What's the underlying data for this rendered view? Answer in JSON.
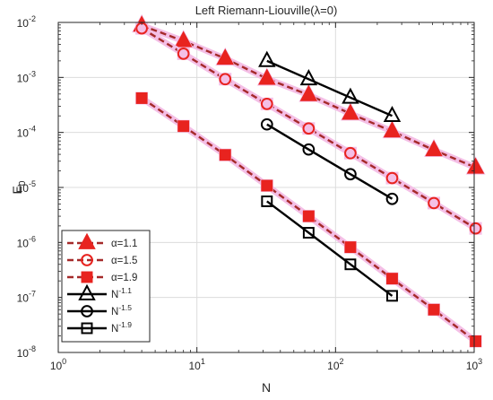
{
  "chart_data": {
    "type": "line",
    "title": "Left Riemann-Liouville(λ=0)",
    "xlabel": "N",
    "ylabel": "E",
    "ylabel_sub": "0",
    "xscale": "log",
    "yscale": "log",
    "xlim": [
      1,
      1000
    ],
    "ylim": [
      1e-08,
      0.01
    ],
    "grid": true,
    "legend_position": "bottom-left",
    "x_ticks": [
      {
        "value": 1,
        "base": "10",
        "exp": "0"
      },
      {
        "value": 10,
        "base": "10",
        "exp": "1"
      },
      {
        "value": 100,
        "base": "10",
        "exp": "2"
      },
      {
        "value": 1000,
        "base": "10",
        "exp": "3"
      }
    ],
    "y_ticks": [
      {
        "value": 1e-08,
        "base": "10",
        "exp": "-8"
      },
      {
        "value": 1e-07,
        "base": "10",
        "exp": "-7"
      },
      {
        "value": 1e-06,
        "base": "10",
        "exp": "-6"
      },
      {
        "value": 1e-05,
        "base": "10",
        "exp": "-5"
      },
      {
        "value": 0.0001,
        "base": "10",
        "exp": "-4"
      },
      {
        "value": 0.001,
        "base": "10",
        "exp": "-3"
      },
      {
        "value": 0.01,
        "base": "10",
        "exp": "-2"
      }
    ],
    "series": [
      {
        "name": "α=1.1",
        "legend_main": "α=1.1",
        "legend_sup": "",
        "marker": "triangle",
        "style": "dashed",
        "color": "#a52a2a",
        "marker_color": "#e8231f",
        "x": [
          4,
          8,
          16,
          32,
          64,
          128,
          256,
          512,
          1024
        ],
        "y": [
          0.0088,
          0.0046,
          0.0022,
          0.00095,
          0.00048,
          0.00022,
          0.000105,
          4.8e-05,
          2.3e-05
        ]
      },
      {
        "name": "α=1.5",
        "legend_main": "α=1.5",
        "legend_sup": "",
        "marker": "circle",
        "style": "dashed",
        "color": "#a52a2a",
        "marker_color": "#e8231f",
        "x": [
          4,
          8,
          16,
          32,
          64,
          128,
          256,
          512,
          1024
        ],
        "y": [
          0.0078,
          0.0027,
          0.00093,
          0.00033,
          0.000118,
          4.2e-05,
          1.48e-05,
          5.2e-06,
          1.8e-06
        ]
      },
      {
        "name": "α=1.9",
        "legend_main": "α=1.9",
        "legend_sup": "",
        "marker": "square",
        "style": "dashed",
        "color": "#a52a2a",
        "marker_color": "#e8231f",
        "x": [
          4,
          8,
          16,
          32,
          64,
          128,
          256,
          512,
          1024
        ],
        "y": [
          0.00042,
          0.00013,
          3.9e-05,
          1.08e-05,
          3e-06,
          8.2e-07,
          2.2e-07,
          6e-08,
          1.6e-08
        ]
      },
      {
        "name": "N-1.1",
        "legend_main": "N",
        "legend_sup": "-1.1",
        "marker": "triangle",
        "style": "solid",
        "color": "#000000",
        "marker_color": "#000000",
        "x": [
          32,
          64,
          128,
          256
        ],
        "y": [
          0.002,
          0.00093,
          0.00043,
          0.0002
        ]
      },
      {
        "name": "N-1.5",
        "legend_main": "N",
        "legend_sup": "-1.5",
        "marker": "circle",
        "style": "solid",
        "color": "#000000",
        "marker_color": "#000000",
        "x": [
          32,
          64,
          128,
          256
        ],
        "y": [
          0.00014,
          4.9e-05,
          1.74e-05,
          6.2e-06
        ]
      },
      {
        "name": "N-1.9",
        "legend_main": "N",
        "legend_sup": "-1.9",
        "marker": "square",
        "style": "solid",
        "color": "#000000",
        "marker_color": "#000000",
        "x": [
          32,
          64,
          128,
          256
        ],
        "y": [
          5.6e-06,
          1.5e-06,
          4e-07,
          1.07e-07
        ]
      }
    ]
  }
}
